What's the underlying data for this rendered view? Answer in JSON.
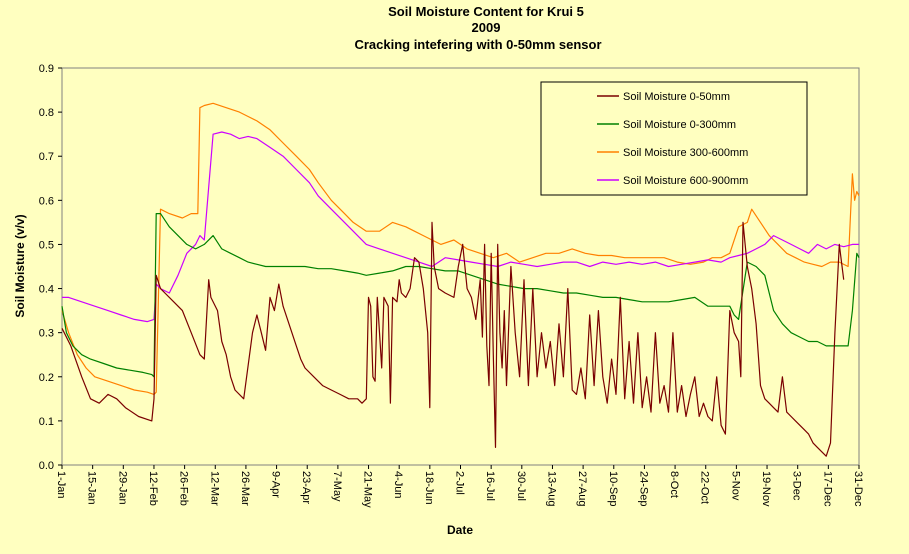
{
  "chart_data": {
    "type": "line",
    "title": [
      "Soil Moisture Content for Krui 5",
      "2009",
      "Cracking intefering with 0-50mm  sensor"
    ],
    "xlabel": "Date",
    "ylabel": "Soil Moisture (v/v)",
    "ylim": [
      0,
      0.9
    ],
    "yticks": [
      "0.0",
      "0.1",
      "0.2",
      "0.3",
      "0.4",
      "0.5",
      "0.6",
      "0.7",
      "0.8",
      "0.9"
    ],
    "xticks": [
      "1-Jan",
      "15-Jan",
      "29-Jan",
      "12-Feb",
      "26-Feb",
      "12-Mar",
      "26-Mar",
      "9-Apr",
      "23-Apr",
      "7-May",
      "21-May",
      "4-Jun",
      "18-Jun",
      "2-Jul",
      "16-Jul",
      "30-Jul",
      "13-Aug",
      "27-Aug",
      "10-Sep",
      "24-Sep",
      "8-Oct",
      "22-Oct",
      "5-Nov",
      "19-Nov",
      "3-Dec",
      "17-Dec",
      "31-Dec"
    ],
    "grid": false,
    "legend_position": "top-right",
    "x_ticks_day_of_year": [
      1,
      15,
      29,
      43,
      57,
      71,
      85,
      99,
      113,
      127,
      141,
      155,
      169,
      183,
      197,
      211,
      225,
      239,
      253,
      267,
      281,
      295,
      309,
      323,
      337,
      351,
      365
    ],
    "series": [
      {
        "name": "Soil Moisture 0-50mm",
        "color": "#7a0000",
        "day": [
          1,
          5,
          10,
          14,
          18,
          22,
          26,
          30,
          36,
          42,
          43,
          44,
          46,
          48,
          52,
          56,
          60,
          64,
          66,
          68,
          69,
          72,
          74,
          76,
          78,
          80,
          84,
          88,
          90,
          92,
          94,
          96,
          98,
          100,
          102,
          104,
          106,
          108,
          110,
          112,
          116,
          120,
          124,
          128,
          132,
          136,
          138,
          140,
          141,
          142,
          143,
          144,
          145,
          146,
          147,
          148,
          150,
          151,
          152,
          154,
          155,
          156,
          158,
          160,
          162,
          164,
          166,
          168,
          169,
          170,
          171,
          173,
          176,
          180,
          182,
          184,
          186,
          188,
          190,
          192,
          193,
          194,
          195,
          196,
          197,
          198,
          199,
          200,
          201,
          202,
          203,
          204,
          206,
          208,
          210,
          212,
          214,
          216,
          218,
          220,
          222,
          224,
          226,
          228,
          230,
          232,
          234,
          236,
          238,
          240,
          242,
          244,
          246,
          248,
          250,
          252,
          254,
          256,
          258,
          260,
          262,
          264,
          266,
          268,
          270,
          272,
          274,
          276,
          278,
          280,
          282,
          284,
          286,
          288,
          290,
          292,
          294,
          296,
          298,
          300,
          302,
          304,
          306,
          308,
          310,
          311,
          312,
          314,
          316,
          318,
          320,
          322,
          324,
          326,
          328,
          330,
          332,
          334,
          336,
          338,
          340,
          342,
          344,
          346,
          348,
          350,
          352,
          354,
          356,
          358,
          360,
          362,
          364,
          365
        ],
        "values": [
          0.31,
          0.27,
          0.2,
          0.15,
          0.14,
          0.16,
          0.15,
          0.13,
          0.11,
          0.1,
          0.15,
          0.43,
          0.4,
          0.39,
          0.37,
          0.35,
          0.3,
          0.25,
          0.24,
          0.42,
          0.38,
          0.35,
          0.28,
          0.25,
          0.2,
          0.17,
          0.15,
          0.3,
          0.34,
          0.3,
          0.26,
          0.38,
          0.35,
          0.41,
          0.36,
          0.33,
          0.3,
          0.27,
          0.24,
          0.22,
          0.2,
          0.18,
          0.17,
          0.16,
          0.15,
          0.15,
          0.14,
          0.15,
          0.38,
          0.36,
          0.2,
          0.19,
          0.38,
          0.3,
          0.22,
          0.38,
          0.36,
          0.14,
          0.38,
          0.37,
          0.42,
          0.39,
          0.38,
          0.4,
          0.47,
          0.46,
          0.4,
          0.3,
          0.13,
          0.55,
          0.45,
          0.4,
          0.39,
          0.38,
          0.45,
          0.5,
          0.4,
          0.38,
          0.33,
          0.42,
          0.29,
          0.5,
          0.27,
          0.18,
          0.48,
          0.25,
          0.04,
          0.5,
          0.3,
          0.22,
          0.35,
          0.18,
          0.45,
          0.3,
          0.2,
          0.42,
          0.18,
          0.4,
          0.2,
          0.3,
          0.22,
          0.28,
          0.18,
          0.32,
          0.2,
          0.4,
          0.17,
          0.16,
          0.22,
          0.15,
          0.34,
          0.18,
          0.35,
          0.2,
          0.14,
          0.24,
          0.16,
          0.38,
          0.15,
          0.28,
          0.14,
          0.3,
          0.13,
          0.2,
          0.12,
          0.3,
          0.14,
          0.18,
          0.12,
          0.3,
          0.12,
          0.18,
          0.11,
          0.16,
          0.2,
          0.11,
          0.14,
          0.11,
          0.1,
          0.2,
          0.09,
          0.07,
          0.35,
          0.3,
          0.28,
          0.2,
          0.55,
          0.45,
          0.4,
          0.32,
          0.18,
          0.15,
          0.14,
          0.13,
          0.12,
          0.2,
          0.12,
          0.11,
          0.1,
          0.09,
          0.08,
          0.07,
          0.05,
          0.04,
          0.03,
          0.02,
          0.05,
          0.3,
          0.5,
          0.42
        ]
      },
      {
        "name": "Soil Moisture 0-300mm",
        "color": "#008000",
        "day": [
          1,
          3,
          6,
          10,
          14,
          20,
          26,
          32,
          38,
          42,
          43,
          44,
          46,
          50,
          54,
          58,
          62,
          66,
          70,
          74,
          78,
          82,
          86,
          90,
          94,
          100,
          106,
          112,
          118,
          124,
          130,
          136,
          140,
          146,
          152,
          158,
          164,
          170,
          176,
          182,
          188,
          194,
          200,
          206,
          212,
          218,
          224,
          230,
          236,
          242,
          248,
          254,
          260,
          266,
          272,
          278,
          284,
          290,
          296,
          298,
          302,
          306,
          308,
          310,
          314,
          318,
          322,
          326,
          330,
          334,
          338,
          342,
          346,
          350,
          352,
          356,
          360,
          362,
          364,
          365
        ],
        "values": [
          0.36,
          0.3,
          0.27,
          0.25,
          0.24,
          0.23,
          0.22,
          0.215,
          0.21,
          0.205,
          0.2,
          0.57,
          0.57,
          0.54,
          0.52,
          0.5,
          0.49,
          0.5,
          0.52,
          0.49,
          0.48,
          0.47,
          0.46,
          0.455,
          0.45,
          0.45,
          0.45,
          0.45,
          0.445,
          0.445,
          0.44,
          0.435,
          0.43,
          0.435,
          0.44,
          0.45,
          0.45,
          0.445,
          0.44,
          0.44,
          0.43,
          0.42,
          0.41,
          0.405,
          0.4,
          0.4,
          0.395,
          0.39,
          0.39,
          0.385,
          0.38,
          0.38,
          0.375,
          0.37,
          0.37,
          0.37,
          0.375,
          0.38,
          0.36,
          0.36,
          0.36,
          0.36,
          0.34,
          0.33,
          0.46,
          0.45,
          0.43,
          0.35,
          0.32,
          0.3,
          0.29,
          0.28,
          0.28,
          0.27,
          0.27,
          0.27,
          0.27,
          0.35,
          0.48,
          0.47
        ]
      },
      {
        "name": "Soil Moisture 300-600mm",
        "color": "#ff8000",
        "day": [
          1,
          4,
          8,
          12,
          16,
          22,
          28,
          34,
          40,
          43,
          44,
          46,
          50,
          56,
          60,
          63,
          64,
          66,
          70,
          76,
          82,
          86,
          90,
          96,
          102,
          108,
          114,
          118,
          124,
          130,
          134,
          140,
          146,
          152,
          158,
          162,
          166,
          170,
          174,
          180,
          186,
          192,
          198,
          204,
          210,
          216,
          222,
          228,
          234,
          240,
          246,
          252,
          258,
          264,
          270,
          276,
          282,
          288,
          294,
          298,
          302,
          306,
          310,
          314,
          316,
          320,
          324,
          328,
          332,
          336,
          340,
          344,
          348,
          352,
          356,
          360,
          362,
          363,
          364,
          365
        ],
        "values": [
          0.35,
          0.3,
          0.25,
          0.22,
          0.2,
          0.19,
          0.18,
          0.17,
          0.165,
          0.16,
          0.165,
          0.58,
          0.57,
          0.56,
          0.57,
          0.57,
          0.81,
          0.815,
          0.82,
          0.81,
          0.8,
          0.79,
          0.78,
          0.76,
          0.73,
          0.7,
          0.67,
          0.64,
          0.6,
          0.57,
          0.55,
          0.53,
          0.53,
          0.55,
          0.54,
          0.53,
          0.52,
          0.51,
          0.5,
          0.51,
          0.49,
          0.48,
          0.47,
          0.48,
          0.46,
          0.47,
          0.48,
          0.48,
          0.49,
          0.48,
          0.475,
          0.475,
          0.47,
          0.47,
          0.47,
          0.47,
          0.46,
          0.455,
          0.46,
          0.47,
          0.47,
          0.48,
          0.54,
          0.55,
          0.58,
          0.55,
          0.52,
          0.5,
          0.48,
          0.47,
          0.46,
          0.455,
          0.45,
          0.46,
          0.46,
          0.45,
          0.66,
          0.6,
          0.62,
          0.61
        ]
      },
      {
        "name": "Soil Moisture 600-900mm",
        "color": "#cc00ff",
        "day": [
          1,
          4,
          10,
          16,
          22,
          28,
          34,
          40,
          43,
          44,
          46,
          50,
          54,
          58,
          62,
          64,
          66,
          70,
          74,
          78,
          82,
          86,
          90,
          96,
          102,
          108,
          114,
          118,
          124,
          130,
          134,
          140,
          146,
          152,
          158,
          164,
          170,
          176,
          182,
          188,
          194,
          200,
          206,
          212,
          218,
          224,
          230,
          236,
          242,
          248,
          254,
          260,
          266,
          272,
          278,
          284,
          290,
          296,
          302,
          306,
          310,
          314,
          318,
          322,
          326,
          330,
          334,
          338,
          342,
          346,
          350,
          354,
          358,
          362,
          365
        ],
        "values": [
          0.38,
          0.38,
          0.37,
          0.36,
          0.35,
          0.34,
          0.33,
          0.325,
          0.33,
          0.41,
          0.4,
          0.39,
          0.43,
          0.48,
          0.5,
          0.52,
          0.51,
          0.75,
          0.755,
          0.75,
          0.74,
          0.745,
          0.74,
          0.72,
          0.7,
          0.67,
          0.64,
          0.61,
          0.58,
          0.55,
          0.53,
          0.5,
          0.49,
          0.48,
          0.47,
          0.46,
          0.45,
          0.47,
          0.465,
          0.46,
          0.455,
          0.45,
          0.46,
          0.455,
          0.45,
          0.455,
          0.46,
          0.46,
          0.45,
          0.46,
          0.455,
          0.46,
          0.455,
          0.46,
          0.45,
          0.455,
          0.46,
          0.465,
          0.46,
          0.47,
          0.475,
          0.48,
          0.49,
          0.5,
          0.52,
          0.51,
          0.5,
          0.49,
          0.48,
          0.5,
          0.49,
          0.5,
          0.495,
          0.5,
          0.5
        ]
      }
    ]
  }
}
